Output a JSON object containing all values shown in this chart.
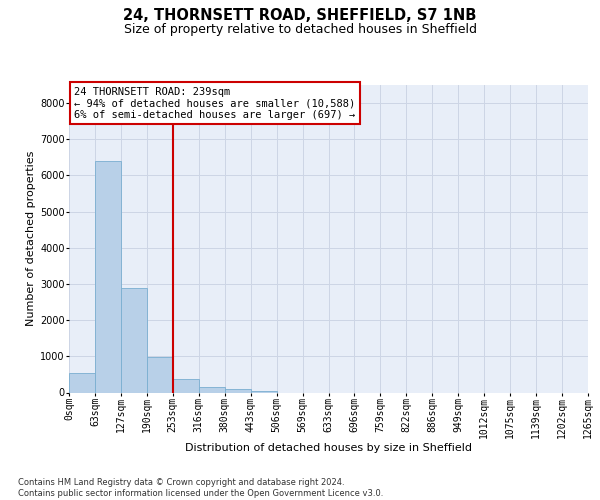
{
  "title1": "24, THORNSETT ROAD, SHEFFIELD, S7 1NB",
  "title2": "Size of property relative to detached houses in Sheffield",
  "xlabel": "Distribution of detached houses by size in Sheffield",
  "ylabel": "Number of detached properties",
  "bin_edges_labels": [
    "0sqm",
    "63sqm",
    "127sqm",
    "190sqm",
    "253sqm",
    "316sqm",
    "380sqm",
    "443sqm",
    "506sqm",
    "569sqm",
    "633sqm",
    "696sqm",
    "759sqm",
    "822sqm",
    "886sqm",
    "949sqm",
    "1012sqm",
    "1075sqm",
    "1139sqm",
    "1202sqm",
    "1265sqm"
  ],
  "bar_heights": [
    550,
    6400,
    2900,
    970,
    370,
    160,
    90,
    55,
    0,
    0,
    0,
    0,
    0,
    0,
    0,
    0,
    0,
    0,
    0,
    0
  ],
  "bar_color": "#b8d0e8",
  "bar_edge_color": "#7aaed0",
  "vline_position": 4,
  "annotation_title": "24 THORNSETT ROAD: 239sqm",
  "annotation_line1": "← 94% of detached houses are smaller (10,588)",
  "annotation_line2": "6% of semi-detached houses are larger (697) →",
  "annotation_box_edgecolor": "#cc0000",
  "vline_color": "#cc0000",
  "ylim": [
    0,
    8500
  ],
  "yticks": [
    0,
    1000,
    2000,
    3000,
    4000,
    5000,
    6000,
    7000,
    8000
  ],
  "grid_color": "#cdd5e5",
  "background_color": "#e8eef8",
  "footer1": "Contains HM Land Registry data © Crown copyright and database right 2024.",
  "footer2": "Contains public sector information licensed under the Open Government Licence v3.0.",
  "title1_fontsize": 10.5,
  "title2_fontsize": 9,
  "tick_fontsize": 7,
  "ylabel_fontsize": 8,
  "xlabel_fontsize": 8,
  "annotation_fontsize": 7.5,
  "footer_fontsize": 6
}
